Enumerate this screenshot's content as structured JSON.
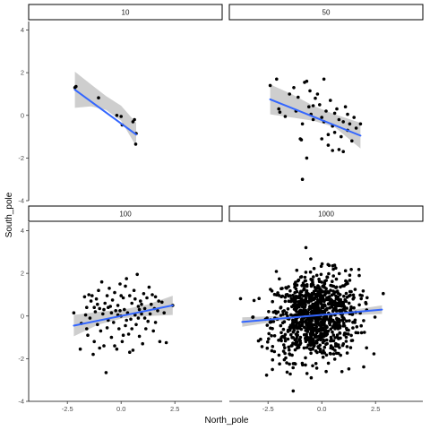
{
  "chart_data": {
    "type": "scatter",
    "layout": "facet-grid-2x2",
    "xlabel": "North_pole",
    "ylabel": "South_pole",
    "xlim": [
      -4.3,
      4.7
    ],
    "ylim": [
      -4.0,
      4.4
    ],
    "xticks": [
      -2.5,
      0.0,
      2.5
    ],
    "yticks": [
      -4,
      -2,
      0,
      2,
      4
    ],
    "grid": false,
    "colors": {
      "points": "#000000",
      "fit_line": "#3366ff",
      "ribbon": "#bdbdbd"
    },
    "panels": [
      {
        "label": "10",
        "points": [
          [
            -2.15,
            1.3
          ],
          [
            -2.1,
            1.35
          ],
          [
            -1.05,
            0.82
          ],
          [
            -0.2,
            0.0
          ],
          [
            0.0,
            -0.05
          ],
          [
            0.05,
            -0.45
          ],
          [
            0.55,
            -0.3
          ],
          [
            0.62,
            -0.2
          ],
          [
            0.7,
            -0.85
          ],
          [
            0.68,
            -1.35
          ]
        ],
        "fit": {
          "x": [
            -2.15,
            0.7
          ],
          "y": [
            1.2,
            -0.9
          ]
        },
        "ribbon": {
          "x": [
            -2.15,
            -1.4,
            -0.7,
            0.0,
            0.7
          ],
          "lower": [
            0.35,
            0.42,
            0.25,
            -0.25,
            -1.45
          ],
          "upper": [
            2.05,
            1.45,
            0.9,
            0.45,
            -0.35
          ]
        }
      },
      {
        "label": "50",
        "points": [
          [
            -2.4,
            1.4
          ],
          [
            -2.1,
            1.7
          ],
          [
            -2.0,
            0.3
          ],
          [
            -1.95,
            0.15
          ],
          [
            -1.7,
            -0.05
          ],
          [
            -1.5,
            1.0
          ],
          [
            -1.3,
            1.3
          ],
          [
            -1.1,
            0.85
          ],
          [
            -0.9,
            -0.4
          ],
          [
            -0.8,
            1.55
          ],
          [
            -0.7,
            1.6
          ],
          [
            -0.6,
            0.4
          ],
          [
            -0.55,
            1.15
          ],
          [
            -0.5,
            0.05
          ],
          [
            -0.4,
            -0.2
          ],
          [
            -0.3,
            0.8
          ],
          [
            -0.2,
            1.0
          ],
          [
            -0.1,
            0.5
          ],
          [
            0.0,
            -0.1
          ],
          [
            0.1,
            -0.3
          ],
          [
            0.2,
            0.2
          ],
          [
            0.3,
            -0.9
          ],
          [
            0.4,
            0.7
          ],
          [
            0.5,
            -0.5
          ],
          [
            0.6,
            0.1
          ],
          [
            0.7,
            0.3
          ],
          [
            0.8,
            -0.2
          ],
          [
            0.9,
            -1.0
          ],
          [
            1.0,
            -0.3
          ],
          [
            1.1,
            0.4
          ],
          [
            1.2,
            -0.7
          ],
          [
            1.3,
            -0.4
          ],
          [
            1.4,
            -1.2
          ],
          [
            1.5,
            -0.1
          ],
          [
            1.6,
            -0.6
          ],
          [
            1.8,
            -0.4
          ],
          [
            -1.0,
            -1.1
          ],
          [
            -0.95,
            -1.15
          ],
          [
            -0.7,
            -2.0
          ],
          [
            -0.9,
            -3.0
          ],
          [
            0.0,
            -1.1
          ],
          [
            0.3,
            -1.4
          ],
          [
            0.5,
            -1.65
          ],
          [
            0.8,
            -1.6
          ],
          [
            1.0,
            -1.7
          ],
          [
            0.1,
            1.7
          ],
          [
            -0.4,
            0.45
          ],
          [
            0.6,
            -0.8
          ],
          [
            -1.2,
            0.2
          ],
          [
            1.2,
            0.05
          ]
        ],
        "fit": {
          "x": [
            -2.4,
            1.8
          ],
          "y": [
            0.75,
            -0.95
          ]
        },
        "ribbon": {
          "x": [
            -2.4,
            -1.4,
            -0.4,
            0.6,
            1.8
          ],
          "lower": [
            0.05,
            -0.1,
            -0.25,
            -0.55,
            -1.55
          ],
          "upper": [
            1.45,
            1.0,
            0.45,
            0.05,
            -0.35
          ]
        }
      },
      {
        "label": "100",
        "points": [
          [
            -2.2,
            0.15
          ],
          [
            -1.9,
            -1.55
          ],
          [
            -1.7,
            0.9
          ],
          [
            -1.6,
            0.4
          ],
          [
            -1.55,
            -0.9
          ],
          [
            -1.5,
            1.0
          ],
          [
            -1.45,
            -0.1
          ],
          [
            -1.4,
            0.7
          ],
          [
            -1.3,
            -1.8
          ],
          [
            -1.25,
            -1.2
          ],
          [
            -1.2,
            0.2
          ],
          [
            -1.15,
            0.8
          ],
          [
            -1.1,
            -0.4
          ],
          [
            -1.05,
            1.2
          ],
          [
            -1.0,
            0.35
          ],
          [
            -0.95,
            -0.7
          ],
          [
            -0.9,
            1.6
          ],
          [
            -0.85,
            0.1
          ],
          [
            -0.8,
            -1.4
          ],
          [
            -0.75,
            0.6
          ],
          [
            -0.7,
            -2.65
          ],
          [
            -0.65,
            0.95
          ],
          [
            -0.6,
            -0.2
          ],
          [
            -0.55,
            1.3
          ],
          [
            -0.5,
            0.45
          ],
          [
            -0.45,
            -1.0
          ],
          [
            -0.4,
            0.75
          ],
          [
            -0.35,
            -0.3
          ],
          [
            -0.3,
            1.1
          ],
          [
            -0.25,
            0.25
          ],
          [
            -0.2,
            -1.55
          ],
          [
            -0.15,
            0.5
          ],
          [
            -0.1,
            -0.6
          ],
          [
            -0.05,
            1.5
          ],
          [
            0.0,
            0.0
          ],
          [
            0.05,
            -1.2
          ],
          [
            0.1,
            0.85
          ],
          [
            0.15,
            0.3
          ],
          [
            0.2,
            -0.45
          ],
          [
            0.25,
            1.75
          ],
          [
            0.3,
            0.15
          ],
          [
            0.35,
            -0.85
          ],
          [
            0.4,
            0.95
          ],
          [
            0.45,
            -0.15
          ],
          [
            0.5,
            0.6
          ],
          [
            0.55,
            -1.6
          ],
          [
            0.6,
            1.2
          ],
          [
            0.65,
            0.05
          ],
          [
            0.7,
            -0.4
          ],
          [
            0.75,
            1.95
          ],
          [
            0.8,
            0.45
          ],
          [
            0.85,
            -0.95
          ],
          [
            0.9,
            0.7
          ],
          [
            0.95,
            0.1
          ],
          [
            1.0,
            -1.3
          ],
          [
            1.05,
            1.05
          ],
          [
            1.1,
            0.35
          ],
          [
            1.15,
            -0.6
          ],
          [
            1.2,
            0.85
          ],
          [
            1.25,
            -0.25
          ],
          [
            1.3,
            1.35
          ],
          [
            1.4,
            0.55
          ],
          [
            1.5,
            -0.7
          ],
          [
            1.6,
            0.9
          ],
          [
            1.7,
            0.25
          ],
          [
            1.8,
            -1.2
          ],
          [
            1.9,
            0.65
          ],
          [
            2.0,
            0.15
          ],
          [
            2.1,
            -1.25
          ],
          [
            2.4,
            0.5
          ],
          [
            -1.85,
            -0.35
          ],
          [
            -1.65,
            0.05
          ],
          [
            -1.35,
            0.95
          ],
          [
            -1.0,
            -1.5
          ],
          [
            -0.65,
            -0.55
          ],
          [
            -0.3,
            -1.4
          ],
          [
            0.0,
            0.95
          ],
          [
            0.2,
            1.4
          ],
          [
            0.5,
            -0.6
          ],
          [
            0.85,
            0.3
          ],
          [
            1.1,
            -0.1
          ],
          [
            1.35,
            0.1
          ],
          [
            1.6,
            -0.3
          ],
          [
            0.4,
            -1.7
          ],
          [
            -0.8,
            0.3
          ],
          [
            -1.6,
            -0.6
          ],
          [
            -0.15,
            0.05
          ],
          [
            0.65,
            0.8
          ],
          [
            1.45,
            1.0
          ],
          [
            -1.1,
            0.55
          ],
          [
            -0.45,
            0.15
          ],
          [
            0.25,
            -0.2
          ],
          [
            0.95,
            0.55
          ],
          [
            1.75,
            0.7
          ],
          [
            -1.25,
            0.4
          ],
          [
            -0.6,
            0.4
          ],
          [
            0.1,
            -0.9
          ],
          [
            0.8,
            -0.1
          ],
          [
            1.55,
            0.35
          ],
          [
            -0.05,
            0.25
          ]
        ],
        "fit": {
          "x": [
            -2.2,
            2.4
          ],
          "y": [
            -0.45,
            0.5
          ]
        },
        "ribbon": {
          "x": [
            -2.2,
            -1.05,
            0.1,
            1.25,
            2.4
          ],
          "lower": [
            -0.95,
            -0.4,
            -0.1,
            0.0,
            0.05
          ],
          "upper": [
            0.05,
            0.2,
            0.3,
            0.55,
            0.95
          ]
        }
      },
      {
        "label": "1000",
        "points": [],
        "fit": {
          "x": [
            -3.7,
            2.8
          ],
          "y": [
            -0.28,
            0.3
          ]
        },
        "ribbon": {
          "x": [
            -3.7,
            -2.1,
            -0.45,
            1.2,
            2.8
          ],
          "lower": [
            -0.5,
            -0.25,
            -0.06,
            0.03,
            0.1
          ],
          "upper": [
            -0.06,
            0.0,
            0.06,
            0.25,
            0.5
          ]
        }
      }
    ]
  }
}
